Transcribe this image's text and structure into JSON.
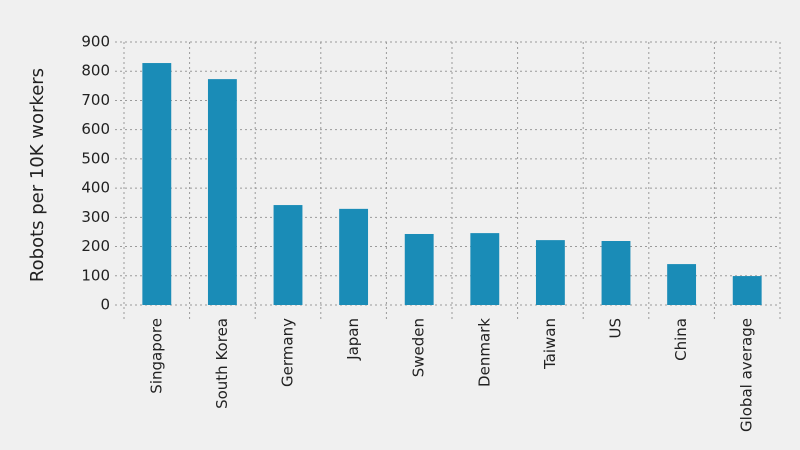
{
  "chart_data": {
    "type": "bar",
    "y_label": "Robots per 10K workers",
    "categories": [
      "Singapore",
      "South Korea",
      "Germany",
      "Japan",
      "Sweden",
      "Denmark",
      "Taiwan",
      "US",
      "China",
      "Global average"
    ],
    "values": [
      828,
      773,
      342,
      329,
      243,
      246,
      222,
      219,
      140,
      99
    ],
    "color": "#1a8cb7",
    "ylim": [
      0,
      900
    ],
    "yticks": [
      0,
      100,
      200,
      300,
      400,
      500,
      600,
      700,
      800,
      900
    ],
    "grid": true
  }
}
